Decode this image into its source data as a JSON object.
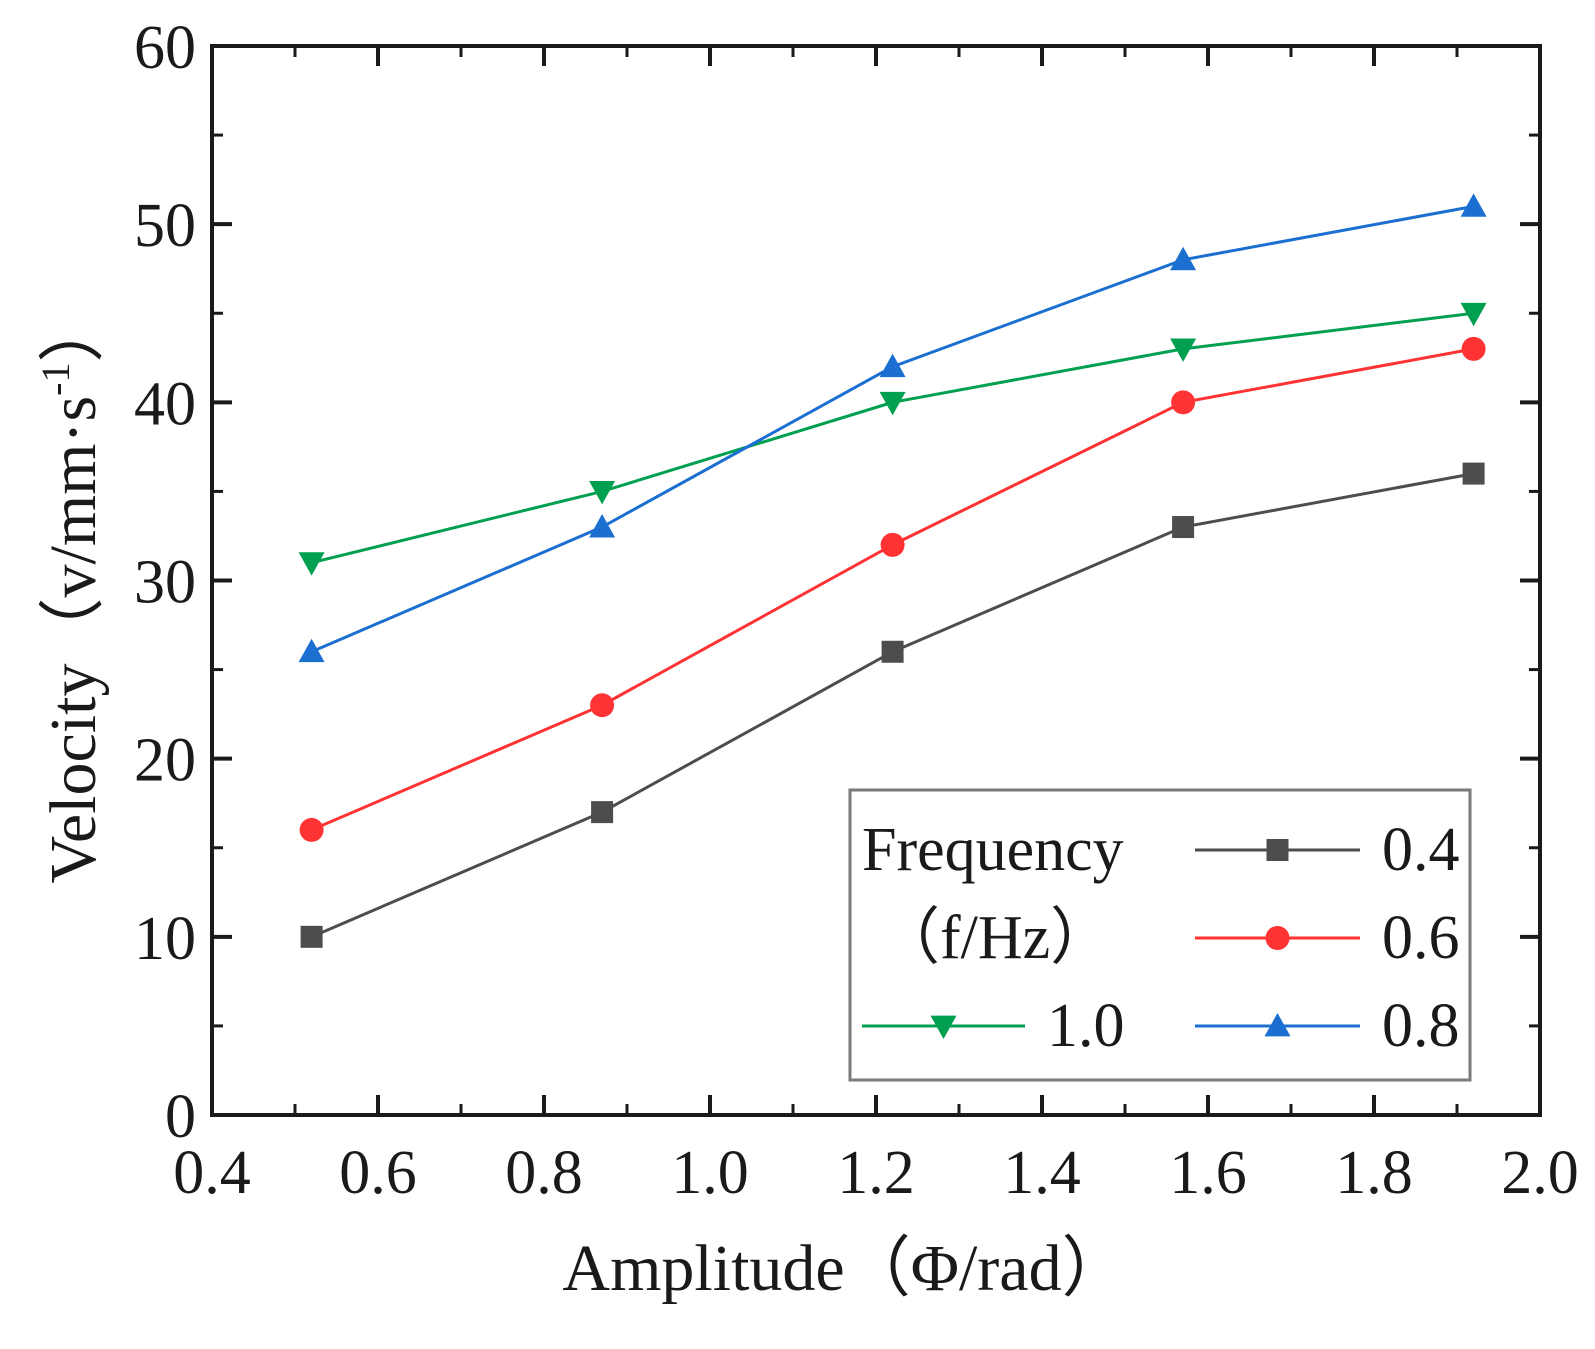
{
  "chart_data": {
    "type": "line",
    "xlabel": "Amplitude（Φ/rad）",
    "ylabel": "Velocity（v/mm·s",
    "ylabel_sup": "-1",
    "ylabel_close": "）",
    "xlim": [
      0.4,
      2.0
    ],
    "ylim": [
      0,
      60
    ],
    "x_ticks": [
      "0.4",
      "0.6",
      "0.8",
      "1.0",
      "1.2",
      "1.4",
      "1.6",
      "1.8",
      "2.0"
    ],
    "y_ticks": [
      "0",
      "10",
      "20",
      "30",
      "40",
      "50",
      "60"
    ],
    "x": [
      0.52,
      0.87,
      1.22,
      1.57,
      1.92
    ],
    "grid": false,
    "legend": {
      "title_line1": "Frequency",
      "title_line2": "（f/Hz）",
      "placement": "bottom-right"
    },
    "series": [
      {
        "name": "0.4",
        "color": "#4d4d4d",
        "marker": "square",
        "values": [
          10,
          17,
          26,
          33,
          36
        ]
      },
      {
        "name": "0.6",
        "color": "#ff3333",
        "marker": "circle",
        "values": [
          16,
          23,
          32,
          40,
          43
        ]
      },
      {
        "name": "1.0",
        "color": "#00a050",
        "marker": "triangle-down",
        "values": [
          31,
          35,
          40,
          43,
          45
        ]
      },
      {
        "name": "0.8",
        "color": "#1a6fd0",
        "marker": "triangle-up",
        "values": [
          26,
          33,
          42,
          48,
          51
        ]
      }
    ]
  }
}
